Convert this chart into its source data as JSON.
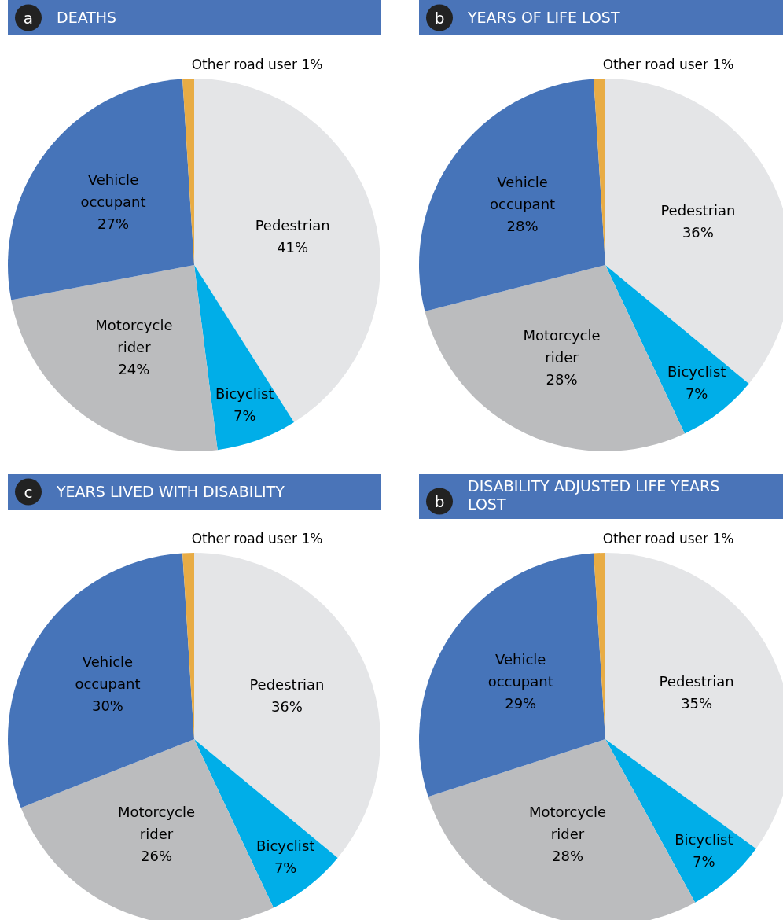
{
  "chart_data": [
    {
      "type": "pie",
      "title": "DEATHS",
      "annotations": [
        "a"
      ],
      "categories": [
        "Pedestrian",
        "Bicyclist",
        "Motorcycle rider",
        "Vehicle occupant",
        "Other road user"
      ],
      "values": [
        41,
        7,
        24,
        27,
        1
      ],
      "value_labels": [
        "41%",
        "7%",
        "24%",
        "27%",
        "1%"
      ],
      "colors": [
        "#e4e5e7",
        "#00aee8",
        "#bbbcbe",
        "#4674b9",
        "#e8ac45"
      ],
      "legend": false
    },
    {
      "type": "pie",
      "title": "YEARS OF LIFE LOST",
      "annotations": [
        "b"
      ],
      "categories": [
        "Pedestrian",
        "Bicyclist",
        "Motorcycle rider",
        "Vehicle occupant",
        "Other road user"
      ],
      "values": [
        36,
        7,
        28,
        28,
        1
      ],
      "value_labels": [
        "36%",
        "7%",
        "28%",
        "28%",
        "1%"
      ],
      "colors": [
        "#e4e5e7",
        "#00aee8",
        "#bbbcbe",
        "#4674b9",
        "#e8ac45"
      ],
      "legend": false
    },
    {
      "type": "pie",
      "title": "YEARS LIVED WITH DISABILITY",
      "annotations": [
        "c"
      ],
      "categories": [
        "Pedestrian",
        "Bicyclist",
        "Motorcycle rider",
        "Vehicle occupant",
        "Other road user"
      ],
      "values": [
        36,
        7,
        26,
        30,
        1
      ],
      "value_labels": [
        "36%",
        "7%",
        "26%",
        "30%",
        "1%"
      ],
      "colors": [
        "#e4e5e7",
        "#00aee8",
        "#bbbcbe",
        "#4674b9",
        "#e8ac45"
      ],
      "legend": false
    },
    {
      "type": "pie",
      "title": "DISABILITY ADJUSTED LIFE YEARS LOST",
      "annotations": [
        "b"
      ],
      "categories": [
        "Pedestrian",
        "Bicyclist",
        "Motorcycle rider",
        "Vehicle occupant",
        "Other road user"
      ],
      "values": [
        35,
        7,
        28,
        29,
        1
      ],
      "value_labels": [
        "35%",
        "7%",
        "28%",
        "29%",
        "1%"
      ],
      "colors": [
        "#e4e5e7",
        "#00aee8",
        "#bbbcbe",
        "#4674b9",
        "#e8ac45"
      ],
      "legend": false
    }
  ]
}
